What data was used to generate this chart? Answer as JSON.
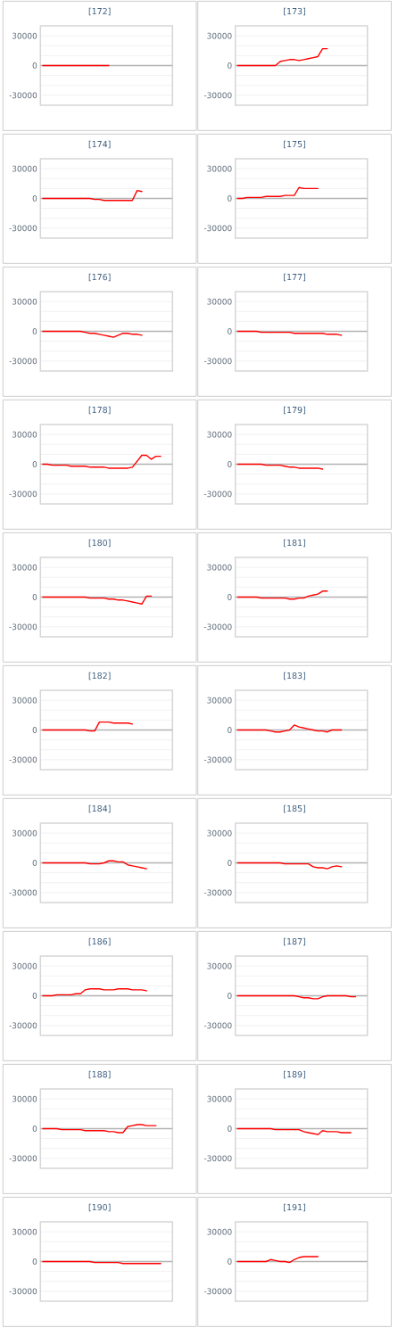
{
  "chart_data": [
    {
      "type": "line",
      "title": "[172]",
      "categories": [
        null,
        null,
        null,
        null,
        null,
        null,
        null,
        null,
        null,
        null,
        null,
        null,
        null,
        null,
        null,
        null,
        null,
        null,
        null,
        null,
        null,
        null,
        null,
        null,
        null,
        null,
        null,
        null
      ],
      "values": [
        0,
        0,
        0,
        0,
        0,
        0,
        0,
        0,
        0,
        0,
        0,
        0,
        0,
        0,
        0,
        null,
        null,
        null,
        null,
        null,
        null,
        null,
        null,
        null,
        null,
        null,
        null,
        null
      ],
      "color": "#ff0000",
      "ylim": [
        -40000,
        40000
      ],
      "yticks": [
        -30000,
        {
          "value": -20000,
          "label": null
        },
        {
          "value": -10000,
          "label": null
        },
        0,
        {
          "value": 10000,
          "label": null
        },
        {
          "value": 20000,
          "label": null
        },
        30000
      ],
      "grid": "y",
      "tick_labels": "y"
    },
    {
      "type": "line",
      "title": "[173]",
      "categories": [
        null,
        null,
        null,
        null,
        null,
        null,
        null,
        null,
        null,
        null,
        null,
        null,
        null,
        null,
        null,
        null,
        null,
        null,
        null,
        null,
        null,
        null,
        null,
        null,
        null,
        null,
        null,
        null
      ],
      "values": [
        0,
        0,
        0,
        0,
        0,
        0,
        0,
        0,
        0,
        4000,
        5000,
        6000,
        6000,
        5000,
        6000,
        7000,
        8000,
        9000,
        17000,
        17000,
        null,
        null,
        null,
        null,
        null,
        null,
        null,
        null
      ],
      "color": "#ff0000",
      "ylim": [
        -40000,
        40000
      ],
      "yticks": [
        -30000,
        {
          "value": -20000,
          "label": null
        },
        {
          "value": -10000,
          "label": null
        },
        0,
        {
          "value": 10000,
          "label": null
        },
        {
          "value": 20000,
          "label": null
        },
        30000
      ],
      "grid": "y",
      "tick_labels": "y"
    },
    {
      "type": "line",
      "title": "[174]",
      "categories": [
        null,
        null,
        null,
        null,
        null,
        null,
        null,
        null,
        null,
        null,
        null,
        null,
        null,
        null,
        null,
        null,
        null,
        null,
        null,
        null,
        null,
        null,
        null,
        null,
        null,
        null,
        null,
        null
      ],
      "values": [
        0,
        0,
        0,
        0,
        0,
        0,
        0,
        0,
        0,
        0,
        0,
        -1000,
        -1000,
        -2000,
        -2000,
        -2000,
        -2000,
        -2000,
        -2000,
        -2000,
        8000,
        7000,
        null,
        null,
        null,
        null,
        null,
        null
      ],
      "color": "#ff0000",
      "ylim": [
        -40000,
        40000
      ],
      "yticks": [
        -30000,
        {
          "value": -20000,
          "label": null
        },
        {
          "value": -10000,
          "label": null
        },
        0,
        {
          "value": 10000,
          "label": null
        },
        {
          "value": 20000,
          "label": null
        },
        30000
      ],
      "grid": "y",
      "tick_labels": "y"
    },
    {
      "type": "line",
      "title": "[175]",
      "categories": [
        null,
        null,
        null,
        null,
        null,
        null,
        null,
        null,
        null,
        null,
        null,
        null,
        null,
        null,
        null,
        null,
        null,
        null,
        null,
        null,
        null,
        null,
        null,
        null,
        null,
        null,
        null,
        null
      ],
      "values": [
        0,
        0,
        1000,
        1000,
        1000,
        1000,
        2000,
        2000,
        2000,
        2000,
        3000,
        3000,
        3000,
        11000,
        10000,
        10000,
        10000,
        10000,
        null,
        null,
        null,
        null,
        null,
        null,
        null,
        null,
        null,
        null
      ],
      "color": "#ff0000",
      "ylim": [
        -40000,
        40000
      ],
      "yticks": [
        -30000,
        {
          "value": -20000,
          "label": null
        },
        {
          "value": -10000,
          "label": null
        },
        0,
        {
          "value": 10000,
          "label": null
        },
        {
          "value": 20000,
          "label": null
        },
        30000
      ],
      "grid": "y",
      "tick_labels": "y"
    },
    {
      "type": "line",
      "title": "[176]",
      "categories": [
        null,
        null,
        null,
        null,
        null,
        null,
        null,
        null,
        null,
        null,
        null,
        null,
        null,
        null,
        null,
        null,
        null,
        null,
        null,
        null,
        null,
        null,
        null,
        null,
        null,
        null,
        null,
        null
      ],
      "values": [
        0,
        0,
        0,
        0,
        0,
        0,
        0,
        0,
        0,
        -1000,
        -2000,
        -2000,
        -3000,
        -4000,
        -5000,
        -6000,
        -4000,
        -2000,
        -2000,
        -3000,
        -3000,
        -4000,
        null,
        null,
        null,
        null,
        null,
        null
      ],
      "color": "#ff0000",
      "ylim": [
        -40000,
        40000
      ],
      "yticks": [
        -30000,
        {
          "value": -20000,
          "label": null
        },
        {
          "value": -10000,
          "label": null
        },
        0,
        {
          "value": 10000,
          "label": null
        },
        {
          "value": 20000,
          "label": null
        },
        30000
      ],
      "grid": "y",
      "tick_labels": "y"
    },
    {
      "type": "line",
      "title": "[177]",
      "categories": [
        null,
        null,
        null,
        null,
        null,
        null,
        null,
        null,
        null,
        null,
        null,
        null,
        null,
        null,
        null,
        null,
        null,
        null,
        null,
        null,
        null,
        null,
        null,
        null,
        null,
        null,
        null,
        null
      ],
      "values": [
        0,
        0,
        0,
        0,
        0,
        -1000,
        -1000,
        -1000,
        -1000,
        -1000,
        -1000,
        -1000,
        -2000,
        -2000,
        -2000,
        -2000,
        -2000,
        -2000,
        -2000,
        -3000,
        -3000,
        -3000,
        -4000,
        null,
        null,
        null,
        null,
        null
      ],
      "color": "#ff0000",
      "ylim": [
        -40000,
        40000
      ],
      "yticks": [
        -30000,
        {
          "value": -20000,
          "label": null
        },
        {
          "value": -10000,
          "label": null
        },
        0,
        {
          "value": 10000,
          "label": null
        },
        {
          "value": 20000,
          "label": null
        },
        30000
      ],
      "grid": "y",
      "tick_labels": "y"
    },
    {
      "type": "line",
      "title": "[178]",
      "categories": [
        null,
        null,
        null,
        null,
        null,
        null,
        null,
        null,
        null,
        null,
        null,
        null,
        null,
        null,
        null,
        null,
        null,
        null,
        null,
        null,
        null,
        null,
        null,
        null,
        null,
        null,
        null,
        null
      ],
      "values": [
        0,
        0,
        -1000,
        -1000,
        -1000,
        -1000,
        -2000,
        -2000,
        -2000,
        -2000,
        -3000,
        -3000,
        -3000,
        -3000,
        -4000,
        -4000,
        -4000,
        -4000,
        -4000,
        -3000,
        3000,
        9000,
        9000,
        5000,
        8000,
        8000,
        null,
        null
      ],
      "color": "#ff0000",
      "ylim": [
        -40000,
        40000
      ],
      "yticks": [
        -30000,
        {
          "value": -20000,
          "label": null
        },
        {
          "value": -10000,
          "label": null
        },
        0,
        {
          "value": 10000,
          "label": null
        },
        {
          "value": 20000,
          "label": null
        },
        30000
      ],
      "grid": "y",
      "tick_labels": "y"
    },
    {
      "type": "line",
      "title": "[179]",
      "categories": [
        null,
        null,
        null,
        null,
        null,
        null,
        null,
        null,
        null,
        null,
        null,
        null,
        null,
        null,
        null,
        null,
        null,
        null,
        null,
        null,
        null,
        null,
        null,
        null,
        null,
        null,
        null,
        null
      ],
      "values": [
        0,
        0,
        0,
        0,
        0,
        0,
        -1000,
        -1000,
        -1000,
        -1000,
        -2000,
        -3000,
        -3000,
        -4000,
        -4000,
        -4000,
        -4000,
        -4000,
        -5000,
        null,
        null,
        null,
        null,
        null,
        null,
        null,
        null,
        null
      ],
      "color": "#ff0000",
      "ylim": [
        -40000,
        40000
      ],
      "yticks": [
        -30000,
        {
          "value": -20000,
          "label": null
        },
        {
          "value": -10000,
          "label": null
        },
        0,
        {
          "value": 10000,
          "label": null
        },
        {
          "value": 20000,
          "label": null
        },
        30000
      ],
      "grid": "y",
      "tick_labels": "y"
    },
    {
      "type": "line",
      "title": "[180]",
      "categories": [
        null,
        null,
        null,
        null,
        null,
        null,
        null,
        null,
        null,
        null,
        null,
        null,
        null,
        null,
        null,
        null,
        null,
        null,
        null,
        null,
        null,
        null,
        null,
        null,
        null,
        null,
        null,
        null
      ],
      "values": [
        0,
        0,
        0,
        0,
        0,
        0,
        0,
        0,
        0,
        0,
        -1000,
        -1000,
        -1000,
        -1000,
        -2000,
        -2000,
        -3000,
        -3000,
        -4000,
        -5000,
        -6000,
        -7000,
        1000,
        1000,
        null,
        null,
        null,
        null
      ],
      "color": "#ff0000",
      "ylim": [
        -40000,
        40000
      ],
      "yticks": [
        -30000,
        {
          "value": -20000,
          "label": null
        },
        {
          "value": -10000,
          "label": null
        },
        0,
        {
          "value": 10000,
          "label": null
        },
        {
          "value": 20000,
          "label": null
        },
        30000
      ],
      "grid": "y",
      "tick_labels": "y"
    },
    {
      "type": "line",
      "title": "[181]",
      "categories": [
        null,
        null,
        null,
        null,
        null,
        null,
        null,
        null,
        null,
        null,
        null,
        null,
        null,
        null,
        null,
        null,
        null,
        null,
        null,
        null,
        null,
        null,
        null,
        null,
        null,
        null,
        null,
        null
      ],
      "values": [
        0,
        0,
        0,
        0,
        0,
        -1000,
        -1000,
        -1000,
        -1000,
        -1000,
        -1000,
        -2000,
        -2000,
        -1000,
        -1000,
        1000,
        2000,
        3000,
        6000,
        6000,
        null,
        null,
        null,
        null,
        null,
        null,
        null,
        null
      ],
      "color": "#ff0000",
      "ylim": [
        -40000,
        40000
      ],
      "yticks": [
        -30000,
        {
          "value": -20000,
          "label": null
        },
        {
          "value": -10000,
          "label": null
        },
        0,
        {
          "value": 10000,
          "label": null
        },
        {
          "value": 20000,
          "label": null
        },
        30000
      ],
      "grid": "y",
      "tick_labels": "y"
    },
    {
      "type": "line",
      "title": "[182]",
      "categories": [
        null,
        null,
        null,
        null,
        null,
        null,
        null,
        null,
        null,
        null,
        null,
        null,
        null,
        null,
        null,
        null,
        null,
        null,
        null,
        null,
        null,
        null,
        null,
        null,
        null,
        null,
        null,
        null
      ],
      "values": [
        0,
        0,
        0,
        0,
        0,
        0,
        0,
        0,
        0,
        0,
        -1000,
        -1000,
        8000,
        8000,
        8000,
        7000,
        7000,
        7000,
        7000,
        6000,
        null,
        null,
        null,
        null,
        null,
        null,
        null,
        null
      ],
      "color": "#ff0000",
      "ylim": [
        -40000,
        40000
      ],
      "yticks": [
        -30000,
        {
          "value": -20000,
          "label": null
        },
        {
          "value": -10000,
          "label": null
        },
        0,
        {
          "value": 10000,
          "label": null
        },
        {
          "value": 20000,
          "label": null
        },
        30000
      ],
      "grid": "y",
      "tick_labels": "y"
    },
    {
      "type": "line",
      "title": "[183]",
      "categories": [
        null,
        null,
        null,
        null,
        null,
        null,
        null,
        null,
        null,
        null,
        null,
        null,
        null,
        null,
        null,
        null,
        null,
        null,
        null,
        null,
        null,
        null,
        null,
        null,
        null,
        null,
        null,
        null
      ],
      "values": [
        0,
        0,
        0,
        0,
        0,
        0,
        0,
        -1000,
        -2000,
        -2000,
        -1000,
        0,
        5000,
        3000,
        2000,
        1000,
        0,
        -1000,
        -1000,
        -2000,
        0,
        0,
        0,
        null,
        null,
        null,
        null,
        null
      ],
      "color": "#ff0000",
      "ylim": [
        -40000,
        40000
      ],
      "yticks": [
        -30000,
        {
          "value": -20000,
          "label": null
        },
        {
          "value": -10000,
          "label": null
        },
        0,
        {
          "value": 10000,
          "label": null
        },
        {
          "value": 20000,
          "label": null
        },
        30000
      ],
      "grid": "y",
      "tick_labels": "y"
    },
    {
      "type": "line",
      "title": "[184]",
      "categories": [
        null,
        null,
        null,
        null,
        null,
        null,
        null,
        null,
        null,
        null,
        null,
        null,
        null,
        null,
        null,
        null,
        null,
        null,
        null,
        null,
        null,
        null,
        null,
        null,
        null,
        null,
        null,
        null
      ],
      "values": [
        0,
        0,
        0,
        0,
        0,
        0,
        0,
        0,
        0,
        0,
        -1000,
        -1000,
        -1000,
        0,
        2000,
        2000,
        1000,
        1000,
        -2000,
        -3000,
        -4000,
        -5000,
        -6000,
        null,
        null,
        null,
        null,
        null
      ],
      "color": "#ff0000",
      "ylim": [
        -40000,
        40000
      ],
      "yticks": [
        -30000,
        {
          "value": -20000,
          "label": null
        },
        {
          "value": -10000,
          "label": null
        },
        0,
        {
          "value": 10000,
          "label": null
        },
        {
          "value": 20000,
          "label": null
        },
        30000
      ],
      "grid": "y",
      "tick_labels": "y"
    },
    {
      "type": "line",
      "title": "[185]",
      "categories": [
        null,
        null,
        null,
        null,
        null,
        null,
        null,
        null,
        null,
        null,
        null,
        null,
        null,
        null,
        null,
        null,
        null,
        null,
        null,
        null,
        null,
        null,
        null,
        null,
        null,
        null,
        null,
        null
      ],
      "values": [
        0,
        0,
        0,
        0,
        0,
        0,
        0,
        0,
        0,
        0,
        -1000,
        -1000,
        -1000,
        -1000,
        -1000,
        -1000,
        -4000,
        -5000,
        -5000,
        -6000,
        -4000,
        -3000,
        -4000,
        null,
        null,
        null,
        null,
        null
      ],
      "color": "#ff0000",
      "ylim": [
        -40000,
        40000
      ],
      "yticks": [
        -30000,
        {
          "value": -20000,
          "label": null
        },
        {
          "value": -10000,
          "label": null
        },
        0,
        {
          "value": 10000,
          "label": null
        },
        {
          "value": 20000,
          "label": null
        },
        30000
      ],
      "grid": "y",
      "tick_labels": "y"
    },
    {
      "type": "line",
      "title": "[186]",
      "categories": [
        null,
        null,
        null,
        null,
        null,
        null,
        null,
        null,
        null,
        null,
        null,
        null,
        null,
        null,
        null,
        null,
        null,
        null,
        null,
        null,
        null,
        null,
        null,
        null,
        null,
        null,
        null,
        null
      ],
      "values": [
        0,
        0,
        0,
        1000,
        1000,
        1000,
        1000,
        2000,
        2000,
        6000,
        7000,
        7000,
        7000,
        6000,
        6000,
        6000,
        7000,
        7000,
        7000,
        6000,
        6000,
        6000,
        5000,
        null,
        null,
        null,
        null,
        null
      ],
      "color": "#ff0000",
      "ylim": [
        -40000,
        40000
      ],
      "yticks": [
        -30000,
        {
          "value": -20000,
          "label": null
        },
        {
          "value": -10000,
          "label": null
        },
        0,
        {
          "value": 10000,
          "label": null
        },
        {
          "value": 20000,
          "label": null
        },
        30000
      ],
      "grid": "y",
      "tick_labels": "y"
    },
    {
      "type": "line",
      "title": "[187]",
      "categories": [
        null,
        null,
        null,
        null,
        null,
        null,
        null,
        null,
        null,
        null,
        null,
        null,
        null,
        null,
        null,
        null,
        null,
        null,
        null,
        null,
        null,
        null,
        null,
        null,
        null,
        null,
        null,
        null
      ],
      "values": [
        0,
        0,
        0,
        0,
        0,
        0,
        0,
        0,
        0,
        0,
        0,
        0,
        0,
        -1000,
        -2000,
        -2000,
        -3000,
        -3000,
        -1000,
        0,
        0,
        0,
        0,
        0,
        -1000,
        -1000,
        null,
        null
      ],
      "color": "#ff0000",
      "ylim": [
        -40000,
        40000
      ],
      "yticks": [
        -30000,
        {
          "value": -20000,
          "label": null
        },
        {
          "value": -10000,
          "label": null
        },
        0,
        {
          "value": 10000,
          "label": null
        },
        {
          "value": 20000,
          "label": null
        },
        30000
      ],
      "grid": "y",
      "tick_labels": "y"
    },
    {
      "type": "line",
      "title": "[188]",
      "categories": [
        null,
        null,
        null,
        null,
        null,
        null,
        null,
        null,
        null,
        null,
        null,
        null,
        null,
        null,
        null,
        null,
        null,
        null,
        null,
        null,
        null,
        null,
        null,
        null,
        null,
        null,
        null,
        null
      ],
      "values": [
        0,
        0,
        0,
        0,
        -1000,
        -1000,
        -1000,
        -1000,
        -1000,
        -2000,
        -2000,
        -2000,
        -2000,
        -2000,
        -3000,
        -3000,
        -4000,
        -4000,
        2000,
        3000,
        4000,
        4000,
        3000,
        3000,
        3000,
        null,
        null,
        null
      ],
      "color": "#ff0000",
      "ylim": [
        -40000,
        40000
      ],
      "yticks": [
        -30000,
        {
          "value": -20000,
          "label": null
        },
        {
          "value": -10000,
          "label": null
        },
        0,
        {
          "value": 10000,
          "label": null
        },
        {
          "value": 20000,
          "label": null
        },
        30000
      ],
      "grid": "y",
      "tick_labels": "y"
    },
    {
      "type": "line",
      "title": "[189]",
      "categories": [
        null,
        null,
        null,
        null,
        null,
        null,
        null,
        null,
        null,
        null,
        null,
        null,
        null,
        null,
        null,
        null,
        null,
        null,
        null,
        null,
        null,
        null,
        null,
        null,
        null,
        null,
        null,
        null
      ],
      "values": [
        0,
        0,
        0,
        0,
        0,
        0,
        0,
        0,
        -1000,
        -1000,
        -1000,
        -1000,
        -1000,
        -1000,
        -3000,
        -4000,
        -5000,
        -6000,
        -2000,
        -3000,
        -3000,
        -3000,
        -4000,
        -4000,
        -4000,
        null,
        null,
        null
      ],
      "color": "#ff0000",
      "ylim": [
        -40000,
        40000
      ],
      "yticks": [
        -30000,
        {
          "value": -20000,
          "label": null
        },
        {
          "value": -10000,
          "label": null
        },
        0,
        {
          "value": 10000,
          "label": null
        },
        {
          "value": 20000,
          "label": null
        },
        30000
      ],
      "grid": "y",
      "tick_labels": "y"
    },
    {
      "type": "line",
      "title": "[190]",
      "categories": [
        null,
        null,
        null,
        null,
        null,
        null,
        null,
        null,
        null,
        null,
        null,
        null,
        null,
        null,
        null,
        null,
        null,
        null,
        null,
        null,
        null,
        null,
        null,
        null,
        null,
        null,
        null,
        null
      ],
      "values": [
        0,
        0,
        0,
        0,
        0,
        0,
        0,
        0,
        0,
        0,
        0,
        -1000,
        -1000,
        -1000,
        -1000,
        -1000,
        -1000,
        -2000,
        -2000,
        -2000,
        -2000,
        -2000,
        -2000,
        -2000,
        -2000,
        -2000,
        null,
        null
      ],
      "color": "#ff0000",
      "ylim": [
        -40000,
        40000
      ],
      "yticks": [
        -30000,
        {
          "value": -20000,
          "label": null
        },
        {
          "value": -10000,
          "label": null
        },
        0,
        {
          "value": 10000,
          "label": null
        },
        {
          "value": 20000,
          "label": null
        },
        30000
      ],
      "grid": "y",
      "tick_labels": "y"
    },
    {
      "type": "line",
      "title": "[191]",
      "categories": [
        null,
        null,
        null,
        null,
        null,
        null,
        null,
        null,
        null,
        null,
        null,
        null,
        null,
        null,
        null,
        null,
        null,
        null,
        null,
        null,
        null,
        null,
        null,
        null,
        null,
        null,
        null,
        null
      ],
      "values": [
        0,
        0,
        0,
        0,
        0,
        0,
        0,
        2000,
        1000,
        0,
        0,
        -1000,
        2000,
        4000,
        5000,
        5000,
        5000,
        5000,
        null,
        null,
        null,
        null,
        null,
        null,
        null,
        null,
        null,
        null
      ],
      "color": "#ff0000",
      "ylim": [
        -40000,
        40000
      ],
      "yticks": [
        -30000,
        {
          "value": -20000,
          "label": null
        },
        {
          "value": -10000,
          "label": null
        },
        0,
        {
          "value": 10000,
          "label": null
        },
        {
          "value": 20000,
          "label": null
        },
        30000
      ],
      "grid": "y",
      "tick_labels": "y"
    }
  ]
}
